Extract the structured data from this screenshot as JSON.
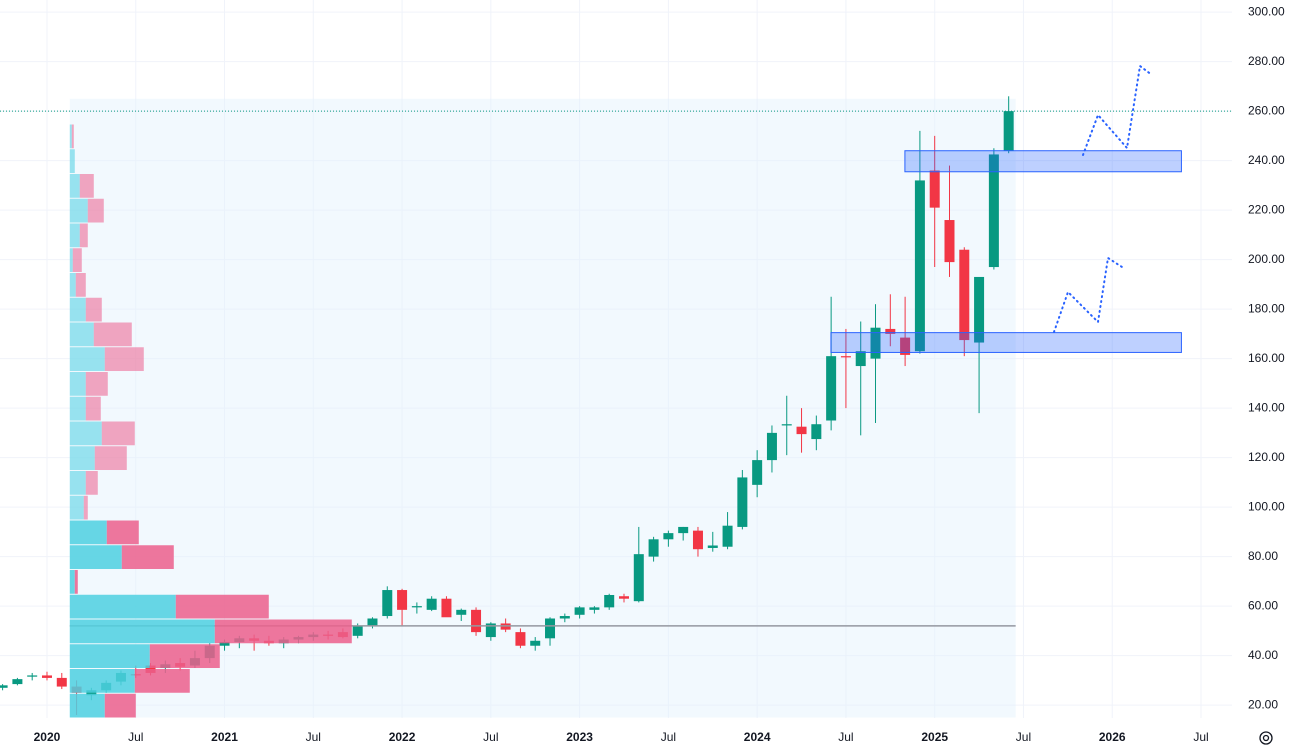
{
  "chart_data": {
    "type": "candlestick",
    "x": [
      "2019-10",
      "2019-11",
      "2019-12",
      "2020-01",
      "2020-02",
      "2020-03",
      "2020-04",
      "2020-05",
      "2020-06",
      "2020-07",
      "2020-08",
      "2020-09",
      "2020-10",
      "2020-11",
      "2020-12",
      "2021-01",
      "2021-02",
      "2021-03",
      "2021-04",
      "2021-05",
      "2021-06",
      "2021-07",
      "2021-08",
      "2021-09",
      "2021-10",
      "2021-11",
      "2021-12",
      "2022-01",
      "2022-02",
      "2022-03",
      "2022-04",
      "2022-05",
      "2022-06",
      "2022-07",
      "2022-08",
      "2022-09",
      "2022-10",
      "2022-11",
      "2022-12",
      "2023-01",
      "2023-02",
      "2023-03",
      "2023-04",
      "2023-05",
      "2023-06",
      "2023-07",
      "2023-08",
      "2023-09",
      "2023-10",
      "2023-11",
      "2023-12",
      "2024-01",
      "2024-02",
      "2024-03",
      "2024-04",
      "2024-05",
      "2024-06",
      "2024-07",
      "2024-08",
      "2024-09",
      "2024-10",
      "2024-11",
      "2024-12",
      "2025-01",
      "2025-02",
      "2025-03",
      "2025-04",
      "2025-05",
      "2025-06"
    ],
    "open": [
      27,
      28.5,
      31.5,
      32,
      31,
      27.5,
      24,
      26,
      29.5,
      32.5,
      36,
      35,
      37,
      36,
      39,
      44,
      45.5,
      47,
      46,
      45,
      46.5,
      47.5,
      48.5,
      49.5,
      48,
      52,
      56,
      66.5,
      59.5,
      58.5,
      63,
      56.5,
      58.5,
      47.5,
      53,
      49.5,
      44,
      47,
      55,
      56.5,
      58.5,
      59.5,
      64,
      62,
      80,
      87,
      89.5,
      90.5,
      83.5,
      84,
      92,
      109,
      119,
      133,
      132.5,
      127.5,
      135,
      161,
      157,
      160,
      172,
      168.5,
      163,
      236,
      216,
      204,
      166.5,
      197,
      244
    ],
    "high": [
      28.5,
      31,
      33,
      33.5,
      33,
      30,
      27,
      30,
      34,
      36,
      37,
      38,
      39,
      42,
      45,
      46.5,
      48,
      48.5,
      48,
      47.5,
      48,
      49.5,
      50,
      51,
      53,
      55.5,
      68,
      67,
      61.5,
      64,
      64,
      59,
      59.5,
      53.5,
      55,
      51,
      47.5,
      55.5,
      57,
      60,
      60,
      65,
      65,
      92,
      88,
      90.5,
      92,
      92,
      90,
      98,
      115,
      123,
      133,
      145,
      140,
      137,
      185,
      172,
      175,
      182,
      186,
      185,
      252,
      250,
      238,
      205,
      193,
      245,
      266
    ],
    "low": [
      26,
      28,
      30,
      30,
      26.5,
      16,
      22,
      25,
      28,
      31,
      32,
      33,
      34,
      35,
      37,
      42,
      43,
      42,
      44,
      43,
      45,
      46,
      46.5,
      47,
      47,
      51,
      55,
      52,
      57,
      58,
      56,
      54,
      48,
      46,
      49.5,
      43,
      42,
      44,
      53.5,
      55,
      57,
      58.5,
      61.5,
      61.5,
      78,
      84,
      86.5,
      80,
      82,
      83,
      91,
      104,
      114,
      121,
      122,
      123,
      131,
      140,
      129,
      134,
      165,
      157,
      162,
      197,
      193,
      161,
      138,
      196,
      243
    ],
    "close": [
      28,
      30.5,
      32,
      31,
      27.5,
      25,
      26,
      29,
      33,
      32,
      33,
      36.5,
      35.5,
      39,
      44,
      45.5,
      47,
      46,
      45,
      46.5,
      47.5,
      48.5,
      48,
      47.5,
      52,
      55,
      66.5,
      58.5,
      60,
      63,
      55.5,
      58.5,
      49.5,
      53,
      50.5,
      44,
      46,
      55,
      56,
      59.5,
      59.5,
      64.5,
      63,
      81,
      87,
      89.5,
      92,
      83,
      84.5,
      92.5,
      112,
      119,
      130,
      133.5,
      129.5,
      133.5,
      161,
      160.5,
      163,
      172.5,
      170,
      161.5,
      232,
      221,
      199,
      167.5,
      193,
      242.5,
      260
    ],
    "up_color": "#089981",
    "down_color": "#f23645",
    "xlim": [
      "2019-10",
      "2026-09"
    ],
    "xticks": [
      {
        "value": "2020-01",
        "label": "2020"
      },
      {
        "value": "2020-07",
        "label": "Jul"
      },
      {
        "value": "2021-01",
        "label": "2021"
      },
      {
        "value": "2021-07",
        "label": "Jul"
      },
      {
        "value": "2022-01",
        "label": "2022"
      },
      {
        "value": "2022-07",
        "label": "Jul"
      },
      {
        "value": "2023-01",
        "label": "2023"
      },
      {
        "value": "2023-07",
        "label": "Jul"
      },
      {
        "value": "2024-01",
        "label": "2024"
      },
      {
        "value": "2024-07",
        "label": "Jul"
      },
      {
        "value": "2025-01",
        "label": "2025"
      },
      {
        "value": "2025-07",
        "label": "Jul"
      },
      {
        "value": "2026-01",
        "label": "2026"
      },
      {
        "value": "2026-07",
        "label": "Jul"
      }
    ],
    "ylim": [
      14.8,
      304.9
    ],
    "yticks": [
      {
        "value": 20,
        "label": "20.00"
      },
      {
        "value": 40,
        "label": "40.00"
      },
      {
        "value": 60,
        "label": "60.00"
      },
      {
        "value": 80,
        "label": "80.00"
      },
      {
        "value": 100,
        "label": "100.00"
      },
      {
        "value": 120,
        "label": "120.00"
      },
      {
        "value": 140,
        "label": "140.00"
      },
      {
        "value": 160,
        "label": "160.00"
      },
      {
        "value": 180,
        "label": "180.00"
      },
      {
        "value": 200,
        "label": "200.00"
      },
      {
        "value": 220,
        "label": "220.00"
      },
      {
        "value": 240,
        "label": "240.00"
      },
      {
        "value": 260,
        "label": "260.00"
      },
      {
        "value": 280,
        "label": "280.00"
      },
      {
        "value": 300,
        "label": "300.00"
      }
    ],
    "grid": true,
    "volume_profile": {
      "start": "2020-02",
      "end": "2025-06",
      "low": 15,
      "high": 265,
      "poc": 52,
      "value_area": [
        15,
        95
      ],
      "up_color": "#4dd0e1",
      "down_color": "#ec5f8c",
      "rows": [
        {
          "low": 15,
          "up": 35,
          "down": 31
        },
        {
          "low": 25,
          "up": 65,
          "down": 55
        },
        {
          "low": 35,
          "up": 80,
          "down": 70
        },
        {
          "low": 45,
          "up": 145,
          "down": 137
        },
        {
          "low": 55,
          "up": 106,
          "down": 93
        },
        {
          "low": 65,
          "up": 5,
          "down": 3
        },
        {
          "low": 75,
          "up": 52,
          "down": 52
        },
        {
          "low": 85,
          "up": 37,
          "down": 32
        },
        {
          "low": 95,
          "up": 14,
          "down": 4
        },
        {
          "low": 105,
          "up": 16,
          "down": 12
        },
        {
          "low": 115,
          "up": 25,
          "down": 32
        },
        {
          "low": 125,
          "up": 32,
          "down": 33
        },
        {
          "low": 135,
          "up": 16,
          "down": 15
        },
        {
          "low": 145,
          "up": 16,
          "down": 22
        },
        {
          "low": 155,
          "up": 35,
          "down": 39
        },
        {
          "low": 165,
          "up": 24,
          "down": 38
        },
        {
          "low": 175,
          "up": 16,
          "down": 16
        },
        {
          "low": 185,
          "up": 6,
          "down": 10
        },
        {
          "low": 195,
          "up": 3,
          "down": 9
        },
        {
          "low": 205,
          "up": 10,
          "down": 8
        },
        {
          "low": 215,
          "up": 18,
          "down": 16
        },
        {
          "low": 225,
          "up": 10,
          "down": 14
        },
        {
          "low": 235,
          "up": 5,
          "down": 0
        },
        {
          "low": 245,
          "up": 2,
          "down": 2
        }
      ]
    },
    "zones": [
      {
        "start": "2024-12",
        "end": "2026-05",
        "low": 235.5,
        "high": 244
      },
      {
        "start": "2024-07",
        "end": "2026-05",
        "low": 162.5,
        "high": 170.5
      }
    ]
  }
}
